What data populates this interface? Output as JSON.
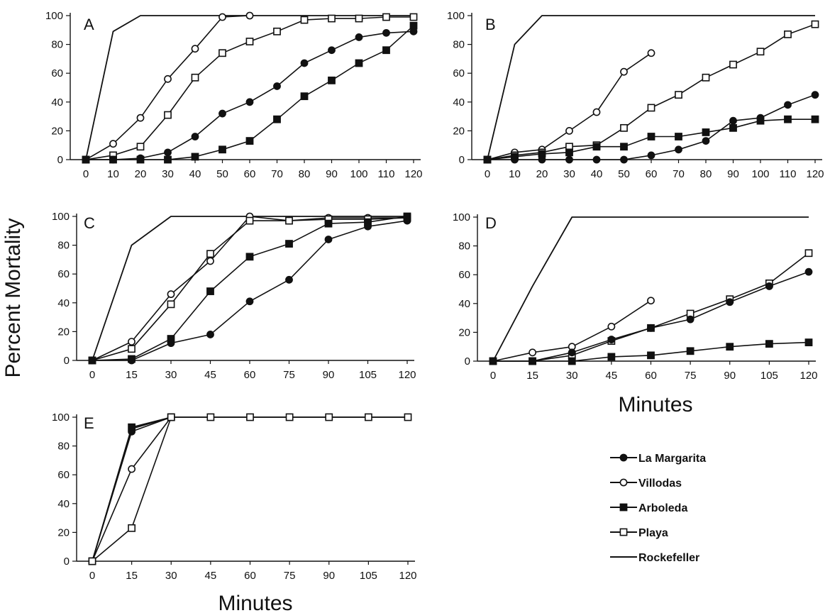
{
  "colors": {
    "ink": "#111111",
    "background": "#ffffff"
  },
  "labels": {
    "ylabel": "Percent Mortality",
    "xlabel": "Minutes"
  },
  "legend": {
    "entries": [
      {
        "name": "La Margarita",
        "marker": "filled-circle"
      },
      {
        "name": "Villodas",
        "marker": "open-circle"
      },
      {
        "name": "Arboleda",
        "marker": "filled-square"
      },
      {
        "name": "Playa",
        "marker": "open-square"
      },
      {
        "name": "Rockefeller",
        "marker": "line"
      }
    ]
  },
  "chart_data": [
    {
      "type": "line",
      "panel": "A",
      "x": [
        0,
        10,
        20,
        30,
        40,
        50,
        60,
        70,
        80,
        90,
        100,
        110,
        120
      ],
      "ylim": [
        0,
        100
      ],
      "yticks": [
        0,
        20,
        40,
        60,
        80,
        100
      ],
      "series": [
        {
          "name": "Rockefeller",
          "x": [
            0,
            10,
            20,
            30,
            40,
            50,
            60,
            70,
            80,
            90,
            100,
            110,
            120
          ],
          "values": [
            0,
            89,
            100,
            100,
            100,
            100,
            100,
            100,
            100,
            100,
            100,
            100,
            100
          ]
        },
        {
          "name": "Villodas",
          "x": [
            0,
            10,
            20,
            30,
            40,
            50,
            60
          ],
          "values": [
            0,
            11,
            29,
            56,
            77,
            99,
            100
          ]
        },
        {
          "name": "Playa",
          "x": [
            0,
            10,
            20,
            30,
            40,
            50,
            60,
            70,
            80,
            90,
            100,
            110,
            120
          ],
          "values": [
            0,
            3,
            9,
            31,
            57,
            74,
            82,
            89,
            97,
            98,
            98,
            99,
            99
          ]
        },
        {
          "name": "La Margarita",
          "x": [
            0,
            10,
            20,
            30,
            40,
            50,
            60,
            70,
            80,
            90,
            100,
            110,
            120
          ],
          "values": [
            0,
            0,
            1,
            5,
            16,
            32,
            40,
            51,
            67,
            76,
            85,
            88,
            89
          ]
        },
        {
          "name": "Arboleda",
          "x": [
            0,
            10,
            20,
            30,
            40,
            50,
            60,
            70,
            80,
            90,
            100,
            110,
            120
          ],
          "values": [
            0,
            0,
            0,
            0,
            2,
            7,
            13,
            28,
            44,
            55,
            67,
            76,
            93
          ]
        }
      ]
    },
    {
      "type": "line",
      "panel": "B",
      "x": [
        0,
        10,
        20,
        30,
        40,
        50,
        60,
        70,
        80,
        90,
        100,
        110,
        120
      ],
      "ylim": [
        0,
        100
      ],
      "yticks": [
        0,
        20,
        40,
        60,
        80,
        100
      ],
      "series": [
        {
          "name": "Rockefeller",
          "x": [
            0,
            10,
            20,
            30,
            40,
            50,
            60,
            70,
            80,
            90,
            100,
            110,
            120
          ],
          "values": [
            0,
            80,
            100,
            100,
            100,
            100,
            100,
            100,
            100,
            100,
            100,
            100,
            100
          ]
        },
        {
          "name": "Villodas",
          "x": [
            0,
            10,
            20,
            30,
            40,
            50,
            60
          ],
          "values": [
            0,
            5,
            7,
            20,
            33,
            61,
            74
          ]
        },
        {
          "name": "Playa",
          "x": [
            0,
            10,
            20,
            30,
            40,
            50,
            60,
            70,
            80,
            90,
            100,
            110,
            120
          ],
          "values": [
            0,
            3,
            5,
            9,
            10,
            22,
            36,
            45,
            57,
            66,
            75,
            87,
            94
          ]
        },
        {
          "name": "La Margarita",
          "x": [
            0,
            10,
            20,
            30,
            40,
            50,
            60,
            70,
            80,
            90,
            100,
            110,
            120
          ],
          "values": [
            0,
            0,
            0,
            0,
            0,
            0,
            3,
            7,
            13,
            27,
            29,
            38,
            45
          ]
        },
        {
          "name": "Arboleda",
          "x": [
            0,
            10,
            20,
            30,
            40,
            50,
            60,
            70,
            80,
            90,
            100,
            110,
            120
          ],
          "values": [
            0,
            2,
            4,
            5,
            9,
            9,
            16,
            16,
            19,
            22,
            27,
            28,
            28
          ]
        }
      ]
    },
    {
      "type": "line",
      "panel": "C",
      "x": [
        0,
        15,
        30,
        45,
        60,
        75,
        90,
        105,
        120
      ],
      "ylim": [
        0,
        100
      ],
      "yticks": [
        0,
        20,
        40,
        60,
        80,
        100
      ],
      "series": [
        {
          "name": "Rockefeller",
          "x": [
            0,
            15,
            30,
            45,
            60,
            75,
            90,
            105,
            120
          ],
          "values": [
            0,
            80,
            100,
            100,
            100,
            100,
            100,
            100,
            100
          ]
        },
        {
          "name": "Villodas",
          "x": [
            0,
            15,
            30,
            45,
            60,
            75,
            90,
            105,
            120
          ],
          "values": [
            0,
            13,
            46,
            69,
            100,
            97,
            99,
            99,
            99
          ]
        },
        {
          "name": "Playa",
          "x": [
            0,
            15,
            30,
            45,
            60,
            75,
            90,
            105,
            120
          ],
          "values": [
            0,
            8,
            39,
            74,
            97,
            97,
            98,
            98,
            99
          ]
        },
        {
          "name": "Arboleda",
          "x": [
            0,
            15,
            30,
            45,
            60,
            75,
            90,
            105,
            120
          ],
          "values": [
            0,
            1,
            15,
            48,
            72,
            81,
            95,
            96,
            100
          ]
        },
        {
          "name": "La Margarita",
          "x": [
            0,
            15,
            30,
            45,
            60,
            75,
            90,
            105,
            120
          ],
          "values": [
            0,
            0,
            12,
            18,
            41,
            56,
            84,
            93,
            97
          ]
        }
      ]
    },
    {
      "type": "line",
      "panel": "D",
      "x": [
        0,
        15,
        30,
        45,
        60,
        75,
        90,
        105,
        120
      ],
      "ylim": [
        0,
        100
      ],
      "yticks": [
        0,
        20,
        40,
        60,
        80,
        100
      ],
      "series": [
        {
          "name": "Rockefeller",
          "x": [
            0,
            15,
            30,
            45,
            60,
            75,
            90,
            105,
            120
          ],
          "values": [
            0,
            52,
            100,
            100,
            100,
            100,
            100,
            100,
            100
          ]
        },
        {
          "name": "Villodas",
          "x": [
            0,
            15,
            30,
            45,
            60
          ],
          "values": [
            0,
            6,
            10,
            24,
            42
          ]
        },
        {
          "name": "Playa",
          "x": [
            0,
            15,
            30,
            45,
            60,
            75,
            90,
            105,
            120
          ],
          "values": [
            0,
            0,
            4,
            14,
            23,
            33,
            43,
            54,
            75
          ]
        },
        {
          "name": "La Margarita",
          "x": [
            0,
            15,
            30,
            45,
            60,
            75,
            90,
            105,
            120
          ],
          "values": [
            0,
            0,
            6,
            15,
            23,
            29,
            41,
            52,
            62
          ]
        },
        {
          "name": "Arboleda",
          "x": [
            0,
            15,
            30,
            45,
            60,
            75,
            90,
            105,
            120
          ],
          "values": [
            0,
            0,
            0,
            3,
            4,
            7,
            10,
            12,
            13
          ]
        }
      ]
    },
    {
      "type": "line",
      "panel": "E",
      "x": [
        0,
        15,
        30,
        45,
        60,
        75,
        90,
        105,
        120
      ],
      "ylim": [
        0,
        100
      ],
      "yticks": [
        0,
        20,
        40,
        60,
        80,
        100
      ],
      "series": [
        {
          "name": "Rockefeller",
          "x": [
            0,
            15,
            30,
            45,
            60,
            75,
            90,
            105,
            120
          ],
          "values": [
            0,
            92,
            100,
            100,
            100,
            100,
            100,
            100,
            100
          ]
        },
        {
          "name": "La Margarita",
          "x": [
            0,
            15,
            30
          ],
          "values": [
            0,
            90,
            100
          ]
        },
        {
          "name": "Arboleda",
          "x": [
            0,
            15,
            30
          ],
          "values": [
            0,
            93,
            100
          ]
        },
        {
          "name": "Villodas",
          "x": [
            0,
            15,
            30
          ],
          "values": [
            0,
            64,
            100
          ]
        },
        {
          "name": "Playa",
          "x": [
            0,
            15,
            30,
            45,
            60,
            75,
            90,
            105,
            120
          ],
          "values": [
            0,
            23,
            100,
            100,
            100,
            100,
            100,
            100,
            100
          ]
        }
      ]
    }
  ]
}
